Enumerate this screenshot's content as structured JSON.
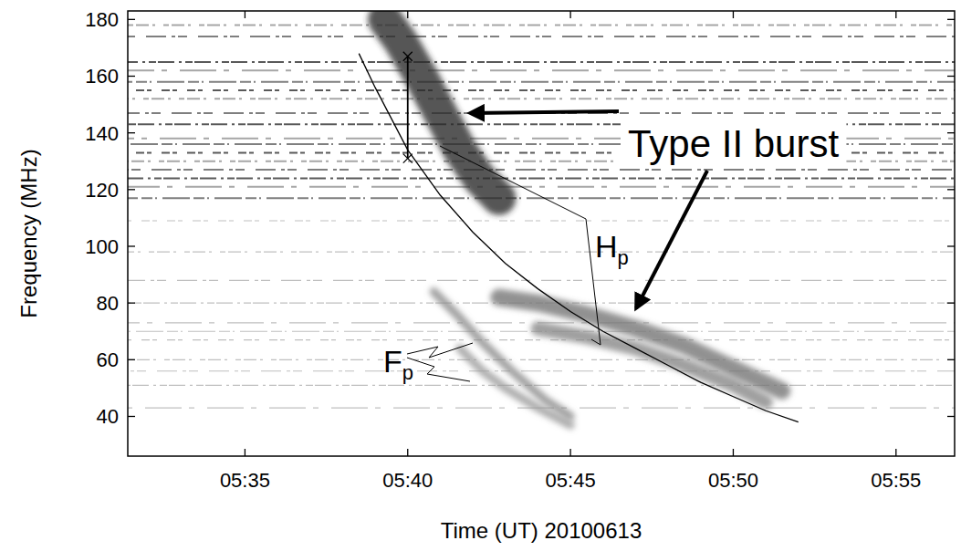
{
  "chart_data": {
    "type": "spectrogram",
    "x_label": "Time (UT) 20100613",
    "y_label": "Frequency (MHz)",
    "xlim": [
      31.4,
      56.8
    ],
    "ylim": [
      26,
      183
    ],
    "xticks": [
      {
        "value": 35,
        "label": "05:35"
      },
      {
        "value": 40,
        "label": "05:40"
      },
      {
        "value": 45,
        "label": "05:45"
      },
      {
        "value": 50,
        "label": "05:50"
      },
      {
        "value": 55,
        "label": "05:55"
      }
    ],
    "yticks": [
      40,
      60,
      80,
      100,
      120,
      140,
      160,
      180
    ],
    "grid": false,
    "interference": [
      178,
      174,
      165,
      162,
      158,
      155,
      152,
      147,
      143,
      138,
      136,
      133,
      130,
      127,
      124,
      121,
      117,
      109,
      98,
      88,
      80,
      73,
      70,
      67,
      60,
      56,
      51,
      43
    ],
    "bands": [
      {
        "x": [
          39.3,
          39.8,
          40.4,
          41.0,
          41.6,
          42.2,
          42.8
        ],
        "values": [
          180,
          172,
          160,
          147,
          134,
          124,
          117
        ],
        "bandwidth": 12,
        "color": "#2a2a2a"
      },
      {
        "x": [
          42.8,
          44.0,
          45.5,
          47.0,
          48.5,
          50.0,
          51.5
        ],
        "values": [
          82,
          80,
          76,
          71,
          65,
          57,
          49
        ],
        "bandwidth": 6,
        "color": "#777777"
      },
      {
        "x": [
          44.0,
          45.5,
          47.0,
          48.5,
          50.0,
          51.0
        ],
        "values": [
          71,
          68,
          64,
          58,
          51,
          45
        ],
        "bandwidth": 5,
        "color": "#888888"
      },
      {
        "x": [
          40.8,
          41.5,
          42.3,
          43.2,
          44.2,
          45.0
        ],
        "values": [
          84,
          76,
          66,
          56,
          46,
          40
        ],
        "bandwidth": 3,
        "color": "#8a8a8a"
      },
      {
        "x": [
          41.6,
          42.3,
          43.0,
          44.0,
          45.0
        ],
        "values": [
          64,
          56,
          50,
          43,
          37
        ],
        "bandwidth": 3,
        "color": "#999999"
      }
    ],
    "fit": {
      "x": [
        38.5,
        39,
        40,
        41,
        42,
        43,
        44,
        45,
        46,
        47,
        48,
        49,
        50,
        51,
        52
      ],
      "values": [
        168,
        156,
        134,
        118,
        105,
        94,
        85,
        77,
        70,
        64,
        58,
        52,
        47,
        42,
        38
      ],
      "color": "#000000"
    },
    "measurement": {
      "x": 40,
      "values": [
        131,
        167
      ]
    },
    "annotations": {
      "type_ii": "Type II burst",
      "hp": {
        "text": "H",
        "sub": "p"
      },
      "fp": {
        "text": "F",
        "sub": "p"
      }
    }
  }
}
